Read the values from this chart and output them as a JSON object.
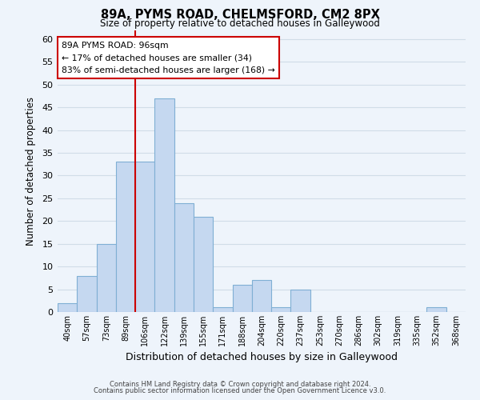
{
  "title": "89A, PYMS ROAD, CHELMSFORD, CM2 8PX",
  "subtitle": "Size of property relative to detached houses in Galleywood",
  "xlabel": "Distribution of detached houses by size in Galleywood",
  "ylabel": "Number of detached properties",
  "bar_labels": [
    "40sqm",
    "57sqm",
    "73sqm",
    "89sqm",
    "106sqm",
    "122sqm",
    "139sqm",
    "155sqm",
    "171sqm",
    "188sqm",
    "204sqm",
    "220sqm",
    "237sqm",
    "253sqm",
    "270sqm",
    "286sqm",
    "302sqm",
    "319sqm",
    "335sqm",
    "352sqm",
    "368sqm"
  ],
  "bar_values": [
    2,
    8,
    15,
    33,
    33,
    47,
    24,
    21,
    1,
    6,
    7,
    1,
    5,
    0,
    0,
    0,
    0,
    0,
    0,
    1,
    0
  ],
  "bar_color": "#c5d8f0",
  "bar_edge_color": "#7fafd4",
  "ylim": [
    0,
    62
  ],
  "yticks": [
    0,
    5,
    10,
    15,
    20,
    25,
    30,
    35,
    40,
    45,
    50,
    55,
    60
  ],
  "vline_color": "#cc0000",
  "annotation_lines": [
    "89A PYMS ROAD: 96sqm",
    "← 17% of detached houses are smaller (34)",
    "83% of semi-detached houses are larger (168) →"
  ],
  "annotation_box_color": "#ffffff",
  "annotation_box_edge": "#cc0000",
  "grid_color": "#d0dce8",
  "background_color": "#eef4fb",
  "footer_line1": "Contains HM Land Registry data © Crown copyright and database right 2024.",
  "footer_line2": "Contains public sector information licensed under the Open Government Licence v3.0."
}
